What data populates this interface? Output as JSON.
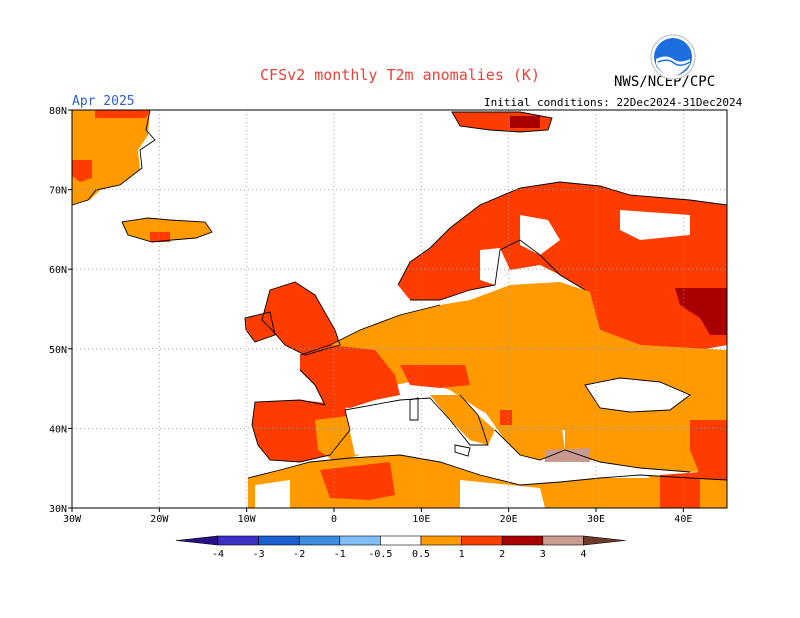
{
  "header": {
    "title": "CFSv2 monthly T2m anomalies (K)",
    "agency": "NWS/NCEP/CPC",
    "valid_month": "Apr 2025",
    "initial_conditions": "Initial conditions: 22Dec2024-31Dec2024",
    "logo_text": "NOAA"
  },
  "map": {
    "lon_range": [
      -30,
      45
    ],
    "lat_range": [
      30,
      80
    ],
    "lon_ticks": [
      "30W",
      "20W",
      "10W",
      "0",
      "10E",
      "20E",
      "30E",
      "40E"
    ],
    "lat_ticks": [
      "30N",
      "40N",
      "50N",
      "60N",
      "70N",
      "80N"
    ],
    "grid": "dotted"
  },
  "legend": {
    "levels": [
      "-4",
      "-3",
      "-2",
      "-1",
      "-0.5",
      "0.5",
      "1",
      "2",
      "3",
      "4"
    ],
    "colors": {
      "lt_-4": "#2a0f8a",
      "-4_-3": "#3b2fc8",
      "-3_-2": "#1c5fd0",
      "-2_-1": "#3c8de0",
      "-1_-0.5": "#7fbff5",
      "-0.5_0.5": "#ffffff",
      "0.5_1": "#ff9a00",
      "1_2": "#ff3c00",
      "2_3": "#a80000",
      "3_4": "#c99a90",
      "gt_4": "#6b3a2a"
    }
  }
}
